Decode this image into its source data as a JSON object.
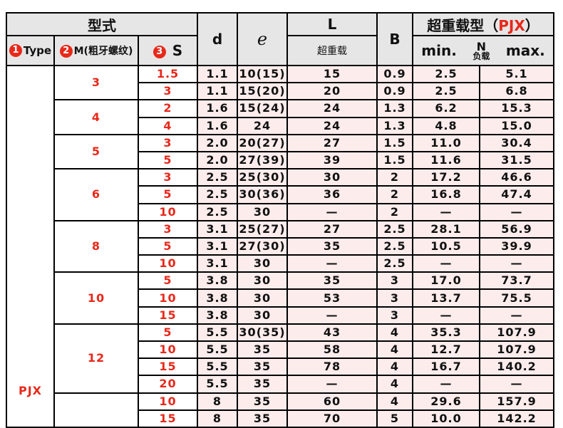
{
  "header": {
    "form": "型式",
    "type_num": "1",
    "type": "Type",
    "m_num": "2",
    "m": "M(粗牙螺纹)",
    "s_num": "3",
    "s": "S",
    "d": "d",
    "e": "e",
    "L": "L",
    "L_sub": "超重载",
    "B": "B",
    "heavy_prefix": "超重载型（",
    "heavy_code": "PJX",
    "heavy_suffix": "）",
    "min": "min.",
    "N": "N",
    "load": "负载",
    "max": "max."
  },
  "type_label": "PJX",
  "groups": [
    {
      "m": "3",
      "rows": [
        [
          "1.5",
          "1.1",
          "10(15)",
          "15",
          "0.9",
          "2.5",
          "5.1"
        ],
        [
          "3",
          "1.1",
          "15(20)",
          "20",
          "0.9",
          "2.5",
          "6.8"
        ]
      ]
    },
    {
      "m": "4",
      "rows": [
        [
          "2",
          "1.6",
          "15(24)",
          "24",
          "1.3",
          "6.2",
          "15.3"
        ],
        [
          "4",
          "1.6",
          "24",
          "24",
          "1.3",
          "4.8",
          "15.0"
        ]
      ]
    },
    {
      "m": "5",
      "rows": [
        [
          "3",
          "2.0",
          "20(27)",
          "27",
          "1.5",
          "11.0",
          "30.4"
        ],
        [
          "5",
          "2.0",
          "27(39)",
          "39",
          "1.5",
          "11.6",
          "31.5"
        ]
      ]
    },
    {
      "m": "6",
      "rows": [
        [
          "3",
          "2.5",
          "25(30)",
          "30",
          "2",
          "17.2",
          "46.6"
        ],
        [
          "5",
          "2.5",
          "30(36)",
          "36",
          "2",
          "16.8",
          "47.4"
        ],
        [
          "10",
          "2.5",
          "30",
          "—",
          "2",
          "—",
          "—"
        ]
      ]
    },
    {
      "m": "8",
      "rows": [
        [
          "3",
          "3.1",
          "25(27)",
          "27",
          "2.5",
          "28.1",
          "56.9"
        ],
        [
          "5",
          "3.1",
          "27(30)",
          "35",
          "2.5",
          "10.5",
          "39.9"
        ],
        [
          "10",
          "3.1",
          "30",
          "—",
          "2.5",
          "—",
          "—"
        ]
      ]
    },
    {
      "m": "10",
      "rows": [
        [
          "5",
          "3.8",
          "30",
          "35",
          "3",
          "17.0",
          "73.7"
        ],
        [
          "10",
          "3.8",
          "30",
          "53",
          "3",
          "13.7",
          "75.5"
        ],
        [
          "15",
          "3.8",
          "30",
          "—",
          "3",
          "—",
          "—"
        ]
      ]
    },
    {
      "m": "12",
      "rows": [
        [
          "5",
          "5.5",
          "30(35)",
          "43",
          "4",
          "35.3",
          "107.9"
        ],
        [
          "10",
          "5.5",
          "35",
          "58",
          "4",
          "12.7",
          "107.9"
        ],
        [
          "15",
          "5.5",
          "35",
          "78",
          "4",
          "16.7",
          "140.2"
        ],
        [
          "20",
          "5.5",
          "35",
          "—",
          "4",
          "—",
          "—"
        ]
      ]
    },
    {
      "m": "",
      "rows": [
        [
          "10",
          "8",
          "35",
          "60",
          "4",
          "29.6",
          "157.9"
        ],
        [
          "15",
          "8",
          "35",
          "70",
          "5",
          "10.0",
          "142.2"
        ]
      ]
    }
  ]
}
